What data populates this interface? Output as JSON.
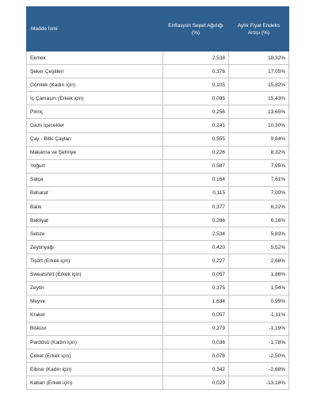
{
  "table": {
    "columns": [
      "Madde İsmi",
      "Enflasyon Sepet Ağırlığı (%)",
      "Aylık Fiyat Endeks Artışı (%)"
    ],
    "rows": [
      [
        "Ekmek",
        "2,538",
        "18,32%"
      ],
      [
        "Şeker Çeşitleri",
        "0,376",
        "17,05%"
      ],
      [
        "Gömlek (Kadın için)",
        "0,105",
        "15,82%"
      ],
      [
        "İç Çamaşırı (Erkek için)",
        "0,095",
        "15,43%"
      ],
      [
        "Pirinç",
        "0,256",
        "13,65%"
      ],
      [
        "Gazlı İçecekler",
        "0,241",
        "10,30%"
      ],
      [
        "Çay - Bitki Çayları",
        "0,555",
        "9,84%"
      ],
      [
        "Makarna ve Şehriye",
        "0,226",
        "8,32%"
      ],
      [
        "Yoğurt",
        "0,587",
        "7,95%"
      ],
      [
        "Salça",
        "0,164",
        "7,61%"
      ],
      [
        "Baharat",
        "0,115",
        "7,00%"
      ],
      [
        "Balık",
        "0,377",
        "6,22%"
      ],
      [
        "Bakliyat",
        "0,286",
        "6,16%"
      ],
      [
        "Sebze",
        "2,534",
        "5,83%"
      ],
      [
        "Zeytinyağı",
        "0,420",
        "5,52%"
      ],
      [
        "Tişört (Erkek için)",
        "0,227",
        "2,68%"
      ],
      [
        "Sweatshirt (Erkek için)",
        "0,057",
        "1,86%"
      ],
      [
        "Zeytin",
        "0,375",
        "1,54%"
      ],
      [
        "Meyve",
        "1,634",
        "0,95%"
      ],
      [
        "Kraker",
        "0,057",
        "-1,11%"
      ],
      [
        "Bisküvi",
        "0,279",
        "-1,19%"
      ],
      [
        "Pardösü (Kadın için)",
        "0,036",
        "-1,78%"
      ],
      [
        "Ceket (Erkek için)",
        "0,078",
        "-2,50%"
      ],
      [
        "Elbise (Kadın için)",
        "0,342",
        "-2,68%"
      ],
      [
        "Kaban (Erkek için)",
        "0,029",
        "-13,18%"
      ]
    ]
  }
}
